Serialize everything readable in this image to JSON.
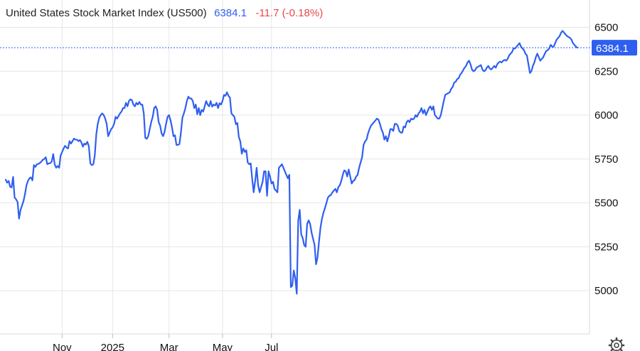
{
  "header": {
    "title": "United States Stock Market Index (US500)",
    "last": "6384.1",
    "change": "-11.7 (-0.18%)"
  },
  "colors": {
    "line": "#2f5ff0",
    "change": "#e8474b",
    "grid": "#e6e6e6",
    "badge": "#2f5ff0"
  },
  "icons": {
    "settings": "gear-icon"
  },
  "chart_data": {
    "type": "line",
    "title": "United States Stock Market Index (US500)",
    "xlabel": "",
    "ylabel": "",
    "last_value": 6384.1,
    "last_label": "6384.1",
    "ylim": [
      4800,
      6650
    ],
    "yticks": [
      5000,
      5250,
      5500,
      5750,
      6000,
      6250,
      6500
    ],
    "ytick_labels": [
      "5000",
      "5250",
      "5500",
      "5750",
      "6000",
      "6250",
      "6500"
    ],
    "xticks": [
      {
        "label": "Nov",
        "index": 38
      },
      {
        "label": "2025",
        "index": 72
      },
      {
        "label": "Mar",
        "index": 110
      },
      {
        "label": "May",
        "index": 146
      },
      {
        "label": "Jul",
        "index": 179
      }
    ],
    "grid": true,
    "series": [
      {
        "values": [
          5632,
          5615,
          5625,
          5591,
          5588,
          5648,
          5530,
          5520,
          5505,
          5410,
          5460,
          5485,
          5510,
          5550,
          5600,
          5625,
          5640,
          5645,
          5628,
          5715,
          5705,
          5720,
          5722,
          5727,
          5735,
          5745,
          5750,
          5760,
          5720,
          5725,
          5726,
          5735,
          5778,
          5720,
          5700,
          5710,
          5700,
          5770,
          5790,
          5810,
          5825,
          5815,
          5810,
          5852,
          5838,
          5852,
          5866,
          5860,
          5860,
          5852,
          5858,
          5844,
          5820,
          5838,
          5832,
          5848,
          5822,
          5725,
          5715,
          5720,
          5770,
          5890,
          5950,
          5985,
          6000,
          6010,
          6000,
          5980,
          5950,
          5880,
          5900,
          5920,
          5930,
          5950,
          5990,
          5980,
          5995,
          6010,
          6020,
          6040,
          6040,
          6070,
          6050,
          6080,
          6090,
          6085,
          6060,
          6050,
          6070,
          6060,
          6075,
          6060,
          6060,
          6010,
          5870,
          5865,
          5880,
          5920,
          5960,
          5990,
          6040,
          6050,
          6030,
          5960,
          5940,
          5895,
          5880,
          5905,
          5950,
          5990,
          6000,
          5970,
          5930,
          5880,
          5885,
          5830,
          5830,
          5835,
          5900,
          5985,
          6010,
          6040,
          6080,
          6105,
          6095,
          6095,
          6080,
          6040,
          6060,
          6005,
          6040,
          6000,
          6030,
          6020,
          6050,
          6080,
          6060,
          6050,
          6080,
          6048,
          6060,
          6055,
          6070,
          6040,
          6068,
          6060,
          6080,
          6115,
          6110,
          6130,
          6110,
          6100,
          6010,
          6000,
          5990,
          5948,
          5955,
          5875,
          5850,
          5780,
          5810,
          5790,
          5800,
          5730,
          5720,
          5725,
          5635,
          5560,
          5625,
          5700,
          5600,
          5560,
          5590,
          5620,
          5680,
          5680,
          5540,
          5680,
          5650,
          5610,
          5620,
          5580,
          5570,
          5560,
          5700,
          5710,
          5720,
          5700,
          5680,
          5660,
          5640,
          5660,
          5020,
          5028,
          5115,
          5070,
          4982,
          5400,
          5460,
          5320,
          5300,
          5260,
          5250,
          5380,
          5400,
          5380,
          5330,
          5295,
          5260,
          5150,
          5190,
          5280,
          5360,
          5410,
          5445,
          5470,
          5500,
          5530,
          5540,
          5545,
          5560,
          5570,
          5580,
          5560,
          5590,
          5600,
          5625,
          5660,
          5685,
          5680,
          5650,
          5690,
          5650,
          5610,
          5625,
          5630,
          5650,
          5660,
          5700,
          5730,
          5760,
          5830,
          5850,
          5860,
          5895,
          5920,
          5940,
          5950,
          5960,
          5970,
          5980,
          5975,
          5950,
          5920,
          5900,
          5860,
          5880,
          5850,
          5880,
          5920,
          5920,
          5910,
          5950,
          5950,
          5940,
          5910,
          5900,
          5900,
          5935,
          5930,
          5960,
          5970,
          5960,
          5980,
          5975,
          5980,
          6000,
          5990,
          6010,
          6020,
          6040,
          6010,
          6030,
          6000,
          6020,
          6040,
          6050,
          6030,
          6050,
          6000,
          5990,
          5980,
          5980,
          6000,
          6040,
          6080,
          6115,
          6120,
          6125,
          6130,
          6150,
          6160,
          6185,
          6190,
          6205,
          6210,
          6230,
          6240,
          6255,
          6270,
          6280,
          6300,
          6310,
          6290,
          6260,
          6250,
          6255,
          6270,
          6275,
          6280,
          6285,
          6260,
          6250,
          6255,
          6270,
          6280,
          6265,
          6260,
          6270,
          6280,
          6270,
          6290,
          6300,
          6305,
          6300,
          6310,
          6315,
          6310,
          6320,
          6340,
          6350,
          6360,
          6380,
          6380,
          6390,
          6400,
          6410,
          6390,
          6380,
          6370,
          6350,
          6340,
          6290,
          6240,
          6250,
          6280,
          6300,
          6330,
          6350,
          6330,
          6310,
          6320,
          6330,
          6350,
          6365,
          6370,
          6380,
          6400,
          6390,
          6390,
          6410,
          6430,
          6440,
          6450,
          6470,
          6480,
          6470,
          6460,
          6450,
          6445,
          6440,
          6430,
          6410,
          6400,
          6390,
          6384.1
        ]
      }
    ]
  }
}
